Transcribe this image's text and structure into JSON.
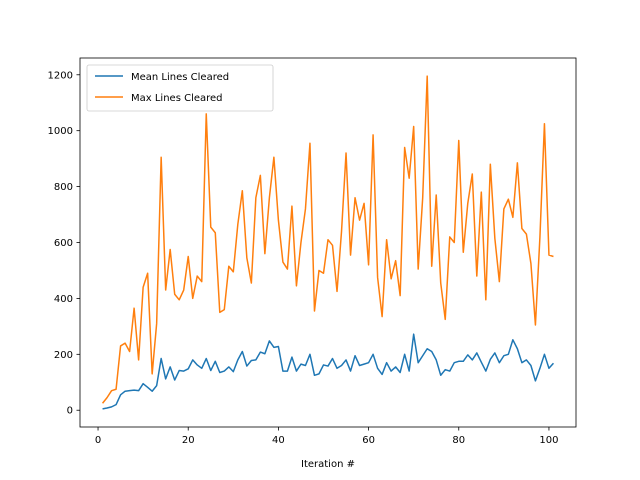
{
  "chart_data": {
    "type": "line",
    "title": "",
    "xlabel": "Iteration #",
    "ylabel": "",
    "xlim": [
      -4,
      106
    ],
    "ylim": [
      -60,
      1260
    ],
    "xticks": [
      0,
      20,
      40,
      60,
      80,
      100
    ],
    "yticks": [
      0,
      200,
      400,
      600,
      800,
      1000,
      1200
    ],
    "xtick_labels": [
      "0",
      "20",
      "40",
      "60",
      "80",
      "100"
    ],
    "ytick_labels": [
      "0",
      "200",
      "400",
      "600",
      "800",
      "1000",
      "1200"
    ],
    "grid": false,
    "legend_position": "top-left",
    "x": [
      1,
      2,
      3,
      4,
      5,
      6,
      7,
      8,
      9,
      10,
      11,
      12,
      13,
      14,
      15,
      16,
      17,
      18,
      19,
      20,
      21,
      22,
      23,
      24,
      25,
      26,
      27,
      28,
      29,
      30,
      31,
      32,
      33,
      34,
      35,
      36,
      37,
      38,
      39,
      40,
      41,
      42,
      43,
      44,
      45,
      46,
      47,
      48,
      49,
      50,
      51,
      52,
      53,
      54,
      55,
      56,
      57,
      58,
      59,
      60,
      61,
      62,
      63,
      64,
      65,
      66,
      67,
      68,
      69,
      70,
      71,
      72,
      73,
      74,
      75,
      76,
      77,
      78,
      79,
      80,
      81,
      82,
      83,
      84,
      85,
      86,
      87,
      88,
      89,
      90,
      91,
      92,
      93,
      94,
      95,
      96,
      97,
      98,
      99,
      100,
      101
    ],
    "series": [
      {
        "name": "Mean Lines Cleared",
        "color": "#1f77b4",
        "values": [
          5,
          8,
          12,
          20,
          55,
          68,
          70,
          72,
          70,
          95,
          82,
          68,
          88,
          185,
          112,
          155,
          108,
          142,
          140,
          148,
          180,
          162,
          150,
          185,
          142,
          175,
          135,
          140,
          155,
          138,
          180,
          210,
          158,
          178,
          180,
          208,
          202,
          248,
          225,
          228,
          140,
          140,
          190,
          140,
          165,
          160,
          200,
          125,
          130,
          162,
          158,
          185,
          150,
          160,
          180,
          140,
          195,
          160,
          165,
          170,
          200,
          150,
          128,
          170,
          140,
          155,
          135,
          200,
          140,
          272,
          170,
          195,
          220,
          210,
          180,
          125,
          145,
          140,
          170,
          175,
          175,
          198,
          180,
          205,
          172,
          140,
          182,
          205,
          170,
          195,
          200,
          252,
          220,
          170,
          180,
          160,
          105,
          150,
          200,
          150,
          168
        ]
      },
      {
        "name": "Max Lines Cleared",
        "color": "#ff7f0e",
        "values": [
          25,
          45,
          70,
          75,
          230,
          240,
          210,
          365,
          180,
          440,
          490,
          130,
          310,
          905,
          430,
          575,
          415,
          395,
          430,
          550,
          400,
          480,
          460,
          1060,
          655,
          635,
          350,
          360,
          515,
          495,
          665,
          785,
          545,
          455,
          760,
          840,
          560,
          760,
          905,
          680,
          530,
          505,
          730,
          445,
          600,
          720,
          955,
          355,
          500,
          490,
          610,
          590,
          425,
          640,
          920,
          555,
          760,
          680,
          740,
          520,
          985,
          475,
          335,
          610,
          470,
          535,
          410,
          940,
          830,
          1015,
          505,
          760,
          1195,
          515,
          770,
          455,
          325,
          620,
          600,
          965,
          565,
          740,
          845,
          480,
          780,
          395,
          880,
          615,
          460,
          720,
          755,
          690,
          885,
          650,
          630,
          525,
          305,
          620,
          1025,
          555,
          550
        ]
      }
    ]
  }
}
